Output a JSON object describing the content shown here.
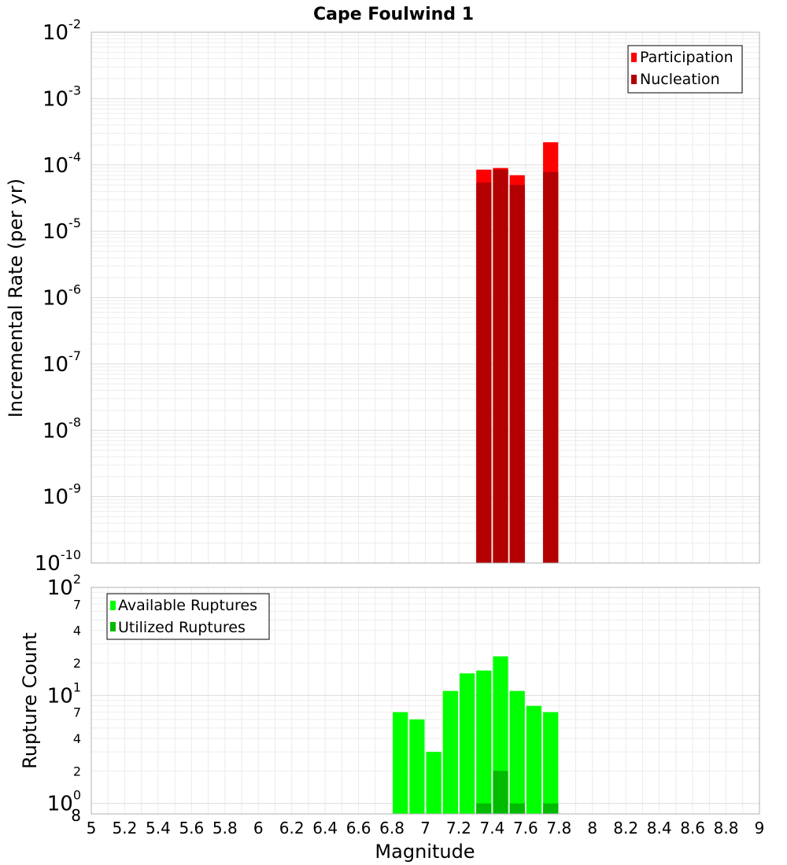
{
  "chart_data": [
    {
      "type": "bar",
      "title": "Cape Foulwind 1",
      "xlabel": "",
      "ylabel": "Incremental Rate (per yr)",
      "xlim": [
        5,
        9
      ],
      "ylim": [
        1e-10,
        0.01
      ],
      "yscale": "log",
      "bar_width": 0.1,
      "grid": true,
      "legend_placement": "top-right",
      "y_ticks": [
        {
          "base": "10",
          "exp": "-2"
        },
        {
          "base": "10",
          "exp": "-3"
        },
        {
          "base": "10",
          "exp": "-4"
        },
        {
          "base": "10",
          "exp": "-5"
        },
        {
          "base": "10",
          "exp": "-6"
        },
        {
          "base": "10",
          "exp": "-7"
        },
        {
          "base": "10",
          "exp": "-8"
        },
        {
          "base": "10",
          "exp": "-9"
        },
        {
          "base": "10",
          "exp": "-10"
        }
      ],
      "series": [
        {
          "name": "Participation",
          "color": "#ff0000",
          "x": [
            7.35,
            7.45,
            7.55,
            7.75
          ],
          "values": [
            8.5e-05,
            9e-05,
            7e-05,
            0.00022
          ]
        },
        {
          "name": "Nucleation",
          "color": "#b30000",
          "x": [
            7.35,
            7.45,
            7.55,
            7.75
          ],
          "values": [
            5.4e-05,
            8.5e-05,
            5e-05,
            7.8e-05
          ]
        }
      ]
    },
    {
      "type": "bar",
      "title": "",
      "xlabel": "Magnitude",
      "ylabel": "Rupture Count",
      "xlim": [
        5,
        9
      ],
      "ylim": [
        0.8,
        100
      ],
      "yscale": "log",
      "bar_width": 0.1,
      "grid": true,
      "legend_placement": "top-left",
      "x_ticks": [
        "5",
        "5.2",
        "5.4",
        "5.6",
        "5.8",
        "6",
        "6.2",
        "6.4",
        "6.6",
        "6.8",
        "7",
        "7.2",
        "7.4",
        "7.6",
        "7.8",
        "8",
        "8.2",
        "8.4",
        "8.6",
        "8.8",
        "9"
      ],
      "y_major_ticks": [
        {
          "value": 100,
          "base": "10",
          "exp": "2"
        },
        {
          "value": 10,
          "base": "10",
          "exp": "1"
        },
        {
          "value": 1,
          "base": "10",
          "exp": "0"
        }
      ],
      "y_minor_labels": [
        {
          "value": 70,
          "label": "7"
        },
        {
          "value": 40,
          "label": "4"
        },
        {
          "value": 20,
          "label": "2"
        },
        {
          "value": 7,
          "label": "7"
        },
        {
          "value": 4,
          "label": "4"
        },
        {
          "value": 2,
          "label": "2"
        }
      ],
      "y_bottom_label": "8",
      "series": [
        {
          "name": "Available Ruptures",
          "color": "#00ff00",
          "x": [
            6.85,
            6.95,
            7.05,
            7.15,
            7.25,
            7.35,
            7.45,
            7.55,
            7.65,
            7.75
          ],
          "values": [
            7,
            6,
            3,
            11,
            16,
            17,
            23,
            11,
            8,
            7
          ]
        },
        {
          "name": "Utilized Ruptures",
          "color": "#00bb00",
          "x": [
            7.35,
            7.45,
            7.55,
            7.75
          ],
          "values": [
            1,
            2,
            1,
            1
          ]
        }
      ]
    }
  ]
}
